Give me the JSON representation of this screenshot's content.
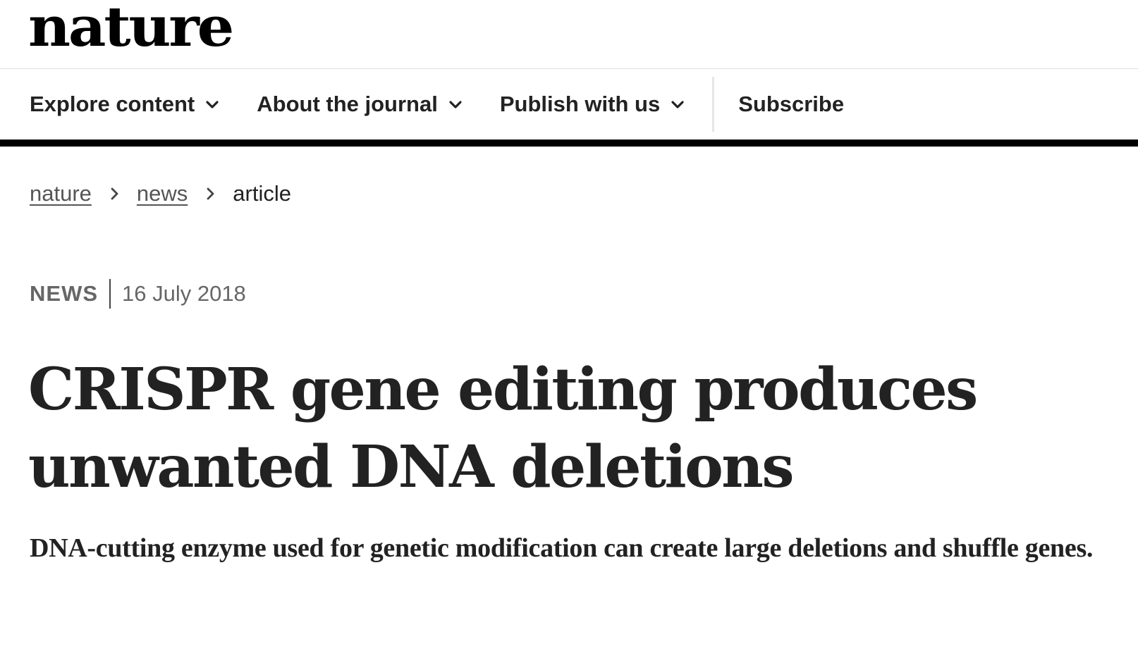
{
  "header": {
    "logo_text": "nature"
  },
  "nav": {
    "items": [
      {
        "label": "Explore content",
        "has_dropdown": true,
        "icon": "chevron-down-icon"
      },
      {
        "label": "About the journal",
        "has_dropdown": true,
        "icon": "chevron-down-icon"
      },
      {
        "label": "Publish with us",
        "has_dropdown": true,
        "icon": "chevron-down-icon"
      }
    ],
    "subscribe_label": "Subscribe"
  },
  "breadcrumb": {
    "items": [
      {
        "label": "nature",
        "link": true
      },
      {
        "label": "news",
        "link": true
      },
      {
        "label": "article",
        "link": false
      }
    ],
    "separator_icon": "chevron-right-icon"
  },
  "article": {
    "type": "NEWS",
    "date": "16 July 2018",
    "title": "CRISPR gene editing produces unwanted DNA deletions",
    "standfirst": "DNA-cutting enzyme used for genetic modification can create large deletions and shuffle genes."
  },
  "colors": {
    "text": "#222222",
    "muted": "#666666",
    "link": "#555555",
    "nav_border": "#000000",
    "divider": "#e6e6e6",
    "background": "#ffffff"
  }
}
